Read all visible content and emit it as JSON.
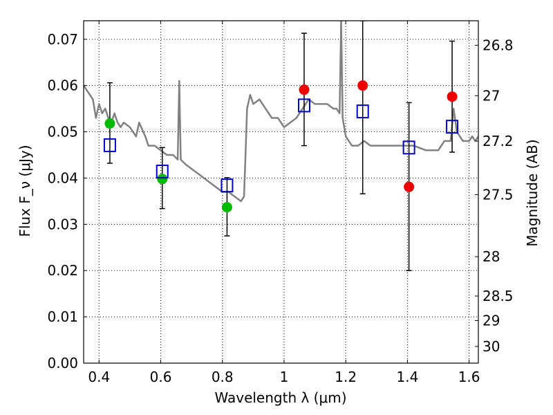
{
  "chart_data": {
    "type": "scatter",
    "xlabel": "Wavelength λ (μm)",
    "ylabel": "Flux F_ν (μJy)",
    "ylabel_right": "Magnitude (AB)",
    "xlim": [
      0.35,
      1.63
    ],
    "ylim": [
      0.0,
      0.074
    ],
    "grid": true,
    "x_ticks": [
      0.4,
      0.6,
      0.8,
      1.0,
      1.2,
      1.4,
      1.6
    ],
    "x_tick_labels": [
      "0.4",
      "0.6",
      "0.8",
      "1",
      "1.2",
      "1.4",
      "1.6"
    ],
    "y_ticks": [
      0.0,
      0.01,
      0.02,
      0.03,
      0.04,
      0.05,
      0.06,
      0.07
    ],
    "y_tick_labels": [
      "0.00",
      "0.01",
      "0.02",
      "0.03",
      "0.04",
      "0.05",
      "0.06",
      "0.07"
    ],
    "right_ticks": [
      {
        "label": "26.8",
        "flux": 0.0687
      },
      {
        "label": "27",
        "flux": 0.0578
      },
      {
        "label": "27.2",
        "flux": 0.048
      },
      {
        "label": "27.5",
        "flux": 0.0364
      },
      {
        "label": "28",
        "flux": 0.023
      },
      {
        "label": "28.5",
        "flux": 0.0145
      },
      {
        "label": "29",
        "flux": 0.0092
      },
      {
        "label": "30",
        "flux": 0.0036
      }
    ],
    "colors": {
      "spectrum": "#808080",
      "green": "#00bb00",
      "red": "#ee0000",
      "model_box": "#0000cc",
      "errorbar": "#000000"
    },
    "series": [
      {
        "marker": "line",
        "x": [
          0.35,
          0.37,
          0.38,
          0.39,
          0.4,
          0.41,
          0.42,
          0.43,
          0.44,
          0.45,
          0.46,
          0.47,
          0.48,
          0.5,
          0.52,
          0.53,
          0.55,
          0.56,
          0.58,
          0.6,
          0.62,
          0.64,
          0.655,
          0.66,
          0.665,
          0.68,
          0.7,
          0.72,
          0.74,
          0.76,
          0.78,
          0.8,
          0.82,
          0.84,
          0.86,
          0.87,
          0.875,
          0.88,
          0.89,
          0.9,
          0.92,
          0.94,
          0.96,
          0.98,
          1.0,
          1.02,
          1.04,
          1.06,
          1.08,
          1.1,
          1.14,
          1.16,
          1.17,
          1.18,
          1.185,
          1.19,
          1.2,
          1.22,
          1.24,
          1.26,
          1.28,
          1.3,
          1.34,
          1.38,
          1.42,
          1.46,
          1.5,
          1.52,
          1.54,
          1.55,
          1.56,
          1.58,
          1.6,
          1.61,
          1.62,
          1.63
        ],
        "y": [
          0.06,
          0.058,
          0.057,
          0.053,
          0.056,
          0.054,
          0.055,
          0.053,
          0.052,
          0.054,
          0.052,
          0.051,
          0.052,
          0.051,
          0.049,
          0.052,
          0.049,
          0.047,
          0.047,
          0.046,
          0.045,
          0.045,
          0.044,
          0.061,
          0.044,
          0.043,
          0.042,
          0.041,
          0.04,
          0.039,
          0.038,
          0.037,
          0.037,
          0.036,
          0.035,
          0.036,
          0.045,
          0.055,
          0.058,
          0.056,
          0.057,
          0.055,
          0.053,
          0.053,
          0.051,
          0.052,
          0.053,
          0.055,
          0.057,
          0.056,
          0.056,
          0.055,
          0.055,
          0.054,
          0.074,
          0.053,
          0.049,
          0.047,
          0.047,
          0.048,
          0.047,
          0.047,
          0.047,
          0.047,
          0.047,
          0.046,
          0.046,
          0.048,
          0.048,
          0.055,
          0.05,
          0.048,
          0.048,
          0.049,
          0.048,
          0.049
        ]
      },
      {
        "marker": "filled-circle",
        "color": "green",
        "x": [
          0.435,
          0.605,
          0.815
        ],
        "y": [
          0.0518,
          0.0398,
          0.0337
        ]
      },
      {
        "marker": "filled-circle",
        "color": "red",
        "x": [
          1.065,
          1.255,
          1.405,
          1.545
        ],
        "y": [
          0.0591,
          0.06,
          0.0381,
          0.0576
        ]
      },
      {
        "marker": "open-square",
        "color": "blue",
        "x": [
          0.435,
          0.605,
          0.815,
          1.065,
          1.255,
          1.405,
          1.545
        ],
        "y": [
          0.0471,
          0.0414,
          0.0384,
          0.0557,
          0.0544,
          0.0466,
          0.0511
        ]
      },
      {
        "marker": "errorbar",
        "x": [
          0.435,
          0.605,
          0.815,
          1.065,
          1.255,
          1.405,
          1.545
        ],
        "y_low": [
          0.0432,
          0.0334,
          0.0275,
          0.047,
          0.0366,
          0.02,
          0.0456
        ],
        "y_high": [
          0.0606,
          0.0466,
          0.0401,
          0.0713,
          0.074,
          0.0563,
          0.0696
        ]
      }
    ]
  }
}
